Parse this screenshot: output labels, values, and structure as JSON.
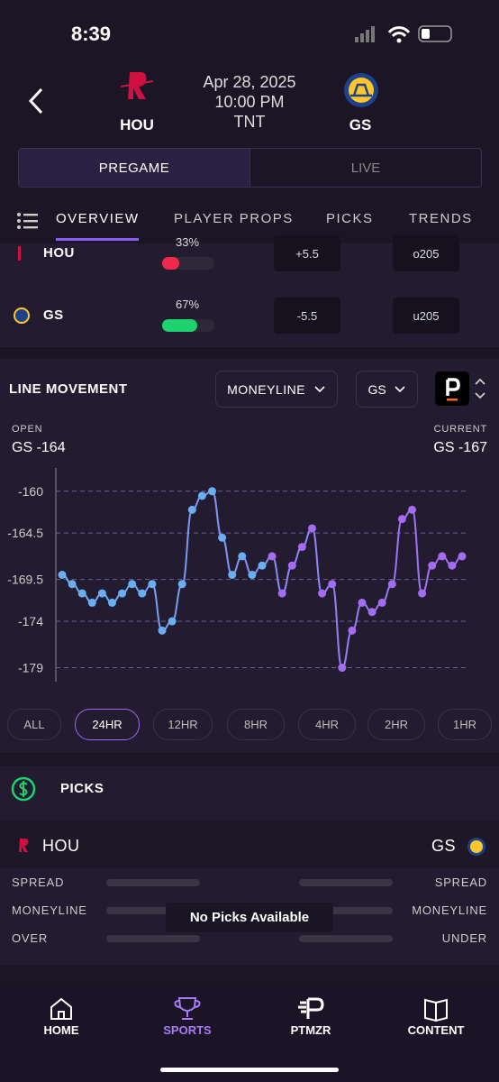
{
  "status_bar": {
    "time": "8:39"
  },
  "header": {
    "date": "Apr 28, 2025",
    "time": "10:00 PM",
    "network": "TNT",
    "away": "HOU",
    "home": "GS"
  },
  "mode_tabs": [
    "PREGAME",
    "LIVE"
  ],
  "nav_tabs": [
    "OVERVIEW",
    "PLAYER PROPS",
    "PICKS",
    "TRENDS"
  ],
  "odds": [
    {
      "team": "HOU",
      "pct": 33,
      "pct_label": "33%",
      "color": "#f0284a",
      "spread": "+5.5",
      "total": "o205"
    },
    {
      "team": "GS",
      "pct": 67,
      "pct_label": "67%",
      "color": "#1ed26e",
      "spread": "-5.5",
      "total": "u205"
    }
  ],
  "line_movement": {
    "title": "LINE MOVEMENT",
    "market": "MONEYLINE",
    "team": "GS",
    "open_label": "OPEN",
    "open": "GS -164",
    "current_label": "CURRENT",
    "current": "GS -167",
    "chart": {
      "type": "line",
      "colors": [
        "#6aaef2",
        "#a36cf2"
      ],
      "values": [
        -169,
        -170,
        -171,
        -172,
        -171,
        -172,
        -171,
        -170,
        -171,
        -170,
        -175,
        -174,
        -170,
        -162,
        -160.5,
        -160,
        -165,
        -169,
        -167,
        -169,
        -168,
        -167,
        -171,
        -168,
        -166,
        -164,
        -171,
        -170,
        -179,
        -175,
        -172,
        -173,
        -172,
        -170,
        -163,
        -162,
        -171,
        -168,
        -167,
        -168,
        -167
      ],
      "ylim": [
        -180.5,
        -157.5
      ],
      "yticks": [
        -160,
        -164.5,
        -169.5,
        -174,
        -179
      ],
      "grid": true
    },
    "ranges": [
      "ALL",
      "24HR",
      "12HR",
      "8HR",
      "4HR",
      "2HR",
      "1HR"
    ],
    "selected_range": 1
  },
  "picks": {
    "title": "PICKS",
    "away": "HOU",
    "home": "GS",
    "rows": [
      [
        "SPREAD",
        "SPREAD"
      ],
      [
        "MONEYLINE",
        "MONEYLINE"
      ],
      [
        "OVER",
        "UNDER"
      ]
    ],
    "empty": "No Picks Available"
  },
  "bottom_nav": {
    "items": [
      "HOME",
      "SPORTS",
      "PTMZR",
      "CONTENT"
    ],
    "active": 1
  }
}
